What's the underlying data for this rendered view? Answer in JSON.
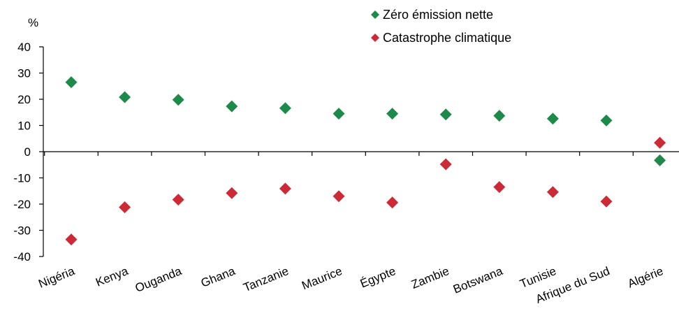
{
  "chart_data": {
    "type": "scatter",
    "unit_label": "%",
    "ylim": [
      -40,
      40
    ],
    "yticks": [
      40,
      30,
      20,
      10,
      0,
      -10,
      -20,
      -30,
      -40
    ],
    "categories": [
      "Nigéria",
      "Kenya",
      "Ouganda",
      "Ghana",
      "Tanzanie",
      "Maurice",
      "Égypte",
      "Zambie",
      "Botswana",
      "Tunisie",
      "Afrique du Sud",
      "Algérie"
    ],
    "series": [
      {
        "name": "Zéro émission nette",
        "color": "#1e8a4a",
        "marker": "diamond",
        "values": [
          26.5,
          20.8,
          19.8,
          17.3,
          16.6,
          14.5,
          14.5,
          14.2,
          13.7,
          12.6,
          11.9,
          -3.3
        ]
      },
      {
        "name": "Catastrophe climatique",
        "color": "#cc2a36",
        "marker": "diamond",
        "values": [
          -33.5,
          -21.2,
          -18.3,
          -15.8,
          -14.1,
          -17.0,
          -19.4,
          -4.8,
          -13.5,
          -15.4,
          -19.0,
          3.4
        ]
      }
    ],
    "grid": false,
    "legend_position": "top-right"
  }
}
